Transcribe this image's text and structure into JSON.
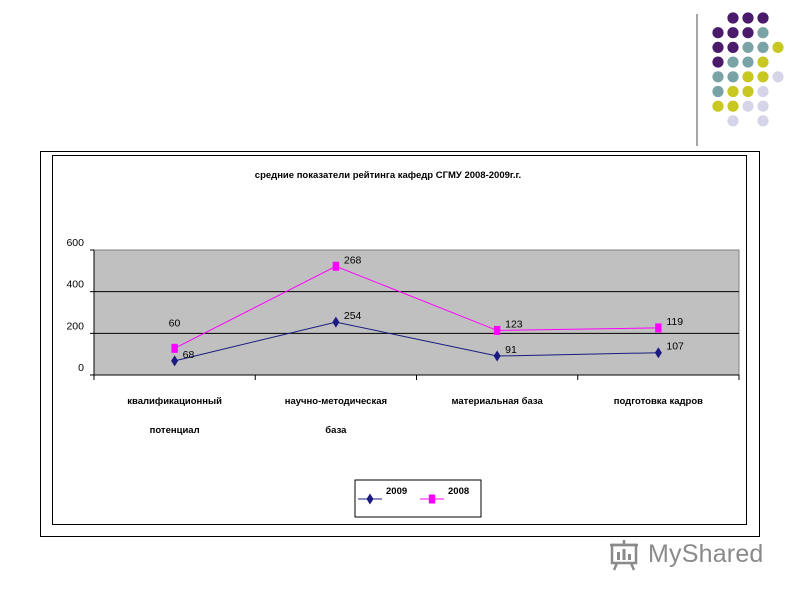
{
  "chart_data": {
    "type": "line",
    "title": "средние показатели рейтинга кафедр СГМУ 2008-2009г.г.",
    "categories": [
      [
        "квалификационный",
        "потенциал"
      ],
      [
        "научно-методическая",
        "база"
      ],
      [
        "материальная база"
      ],
      [
        "подготовка кадров"
      ]
    ],
    "series": [
      {
        "name": "2009",
        "values": [
          68,
          254,
          91,
          107
        ],
        "color": "#1a1a80",
        "marker": "diamond"
      },
      {
        "name": "2008",
        "values": [
          128,
          522,
          214,
          226
        ],
        "labels": [
          "60",
          "268",
          "123",
          "119"
        ],
        "color": "#ff00ff",
        "marker": "square"
      }
    ],
    "y_ticks": [
      "0",
      "200",
      "400",
      "600"
    ],
    "ylim": [
      0,
      600
    ],
    "grid": true,
    "plot_background": "#c0c0c0",
    "legend_position": "bottom"
  },
  "decor": {
    "dot_colors": {
      "purple": "#4b1b6b",
      "teal": "#7aa3a6",
      "yellow": "#c9c722",
      "lilac": "#d6d4e8"
    }
  },
  "watermark": {
    "text": "MyShared",
    "icon": "presentation-board-icon"
  }
}
